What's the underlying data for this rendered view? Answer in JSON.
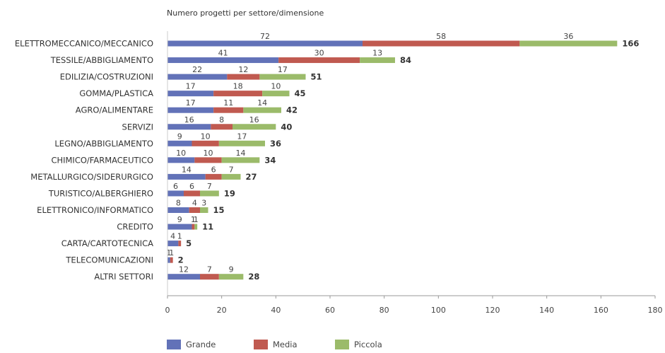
{
  "chart_data": {
    "type": "bar",
    "orientation": "horizontal",
    "stacked": true,
    "title": "Numero progetti per settore/dimensione",
    "categories": [
      "ELETTROMECCANICO/MECCANICO",
      "TESSILE/ABBIGLIAMENTO",
      "EDILIZIA/COSTRUZIONI",
      "GOMMA/PLASTICA",
      "AGRO/ALIMENTARE",
      "SERVIZI",
      "LEGNO/ABBIGLIAMENTO",
      "CHIMICO/FARMACEUTICO",
      "METALLURGICO/SIDERURGICO",
      "TURISTICO/ALBERGHIERO",
      "ELETTRONICO/INFORMATICO",
      "CREDITO",
      "CARTA/CARTOTECNICA",
      "TELECOMUNICAZIONI",
      "ALTRI SETTORI"
    ],
    "series": [
      {
        "name": "Grande",
        "color": "#6272b8",
        "values": [
          72,
          41,
          22,
          17,
          17,
          16,
          9,
          10,
          14,
          6,
          8,
          9,
          4,
          1,
          12
        ]
      },
      {
        "name": "Media",
        "color": "#c05a50",
        "values": [
          58,
          30,
          12,
          18,
          11,
          8,
          10,
          10,
          6,
          6,
          4,
          1,
          1,
          1,
          7
        ]
      },
      {
        "name": "Piccola",
        "color": "#9bbb6a",
        "values": [
          36,
          13,
          17,
          10,
          14,
          16,
          17,
          14,
          7,
          7,
          3,
          1,
          0,
          0,
          9
        ]
      }
    ],
    "totals": [
      166,
      84,
      51,
      45,
      42,
      40,
      36,
      34,
      27,
      19,
      15,
      11,
      5,
      2,
      28
    ],
    "xlim": [
      0,
      180
    ],
    "xticks": [
      "0",
      "20",
      "40",
      "60",
      "80",
      "100",
      "120",
      "140",
      "160",
      "180"
    ],
    "grid": false,
    "legend_position": "bottom"
  }
}
